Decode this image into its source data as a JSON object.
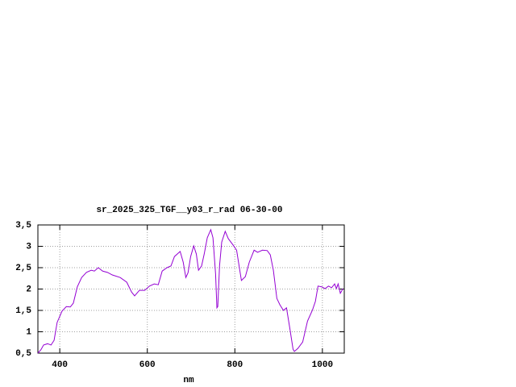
{
  "chart_data": {
    "type": "line",
    "title": "sr_2025_325_TGF__y03_r_rad 06-30-00",
    "x_label": "nm",
    "x": [
      350,
      357,
      363,
      372,
      380,
      387,
      394,
      405,
      415,
      424,
      431,
      440,
      450,
      461,
      472,
      479,
      488,
      498,
      509,
      520,
      538,
      553,
      564,
      571,
      582,
      594,
      605,
      616,
      625,
      634,
      645,
      654,
      662,
      675,
      682,
      688,
      693,
      699,
      706,
      712,
      717,
      724,
      730,
      737,
      745,
      750,
      756,
      759,
      761,
      765,
      770,
      778,
      785,
      796,
      804,
      815,
      824,
      833,
      844,
      852,
      863,
      874,
      881,
      888,
      896,
      903,
      911,
      918,
      925,
      933,
      936,
      944,
      955,
      966,
      977,
      984,
      990,
      999,
      1006,
      1014,
      1021,
      1028,
      1032,
      1036,
      1041,
      1047
    ],
    "series": [
      {
        "color": "#9400d3",
        "values": [
          0.5,
          0.58,
          0.69,
          0.72,
          0.69,
          0.8,
          1.22,
          1.48,
          1.59,
          1.58,
          1.67,
          2.05,
          2.27,
          2.39,
          2.44,
          2.42,
          2.5,
          2.42,
          2.39,
          2.33,
          2.27,
          2.16,
          1.93,
          1.84,
          1.97,
          1.97,
          2.07,
          2.12,
          2.1,
          2.42,
          2.5,
          2.54,
          2.76,
          2.88,
          2.63,
          2.27,
          2.38,
          2.76,
          3.01,
          2.82,
          2.44,
          2.54,
          2.82,
          3.2,
          3.39,
          3.2,
          2.35,
          1.56,
          1.59,
          2.54,
          3.1,
          3.35,
          3.18,
          3.03,
          2.91,
          2.2,
          2.29,
          2.63,
          2.91,
          2.86,
          2.91,
          2.9,
          2.8,
          2.44,
          1.78,
          1.63,
          1.5,
          1.56,
          1.12,
          0.59,
          0.54,
          0.61,
          0.76,
          1.25,
          1.5,
          1.71,
          2.07,
          2.05,
          2.01,
          2.07,
          2.03,
          2.12,
          2.01,
          2.12,
          1.9,
          2.01
        ]
      }
    ],
    "xlim": [
      350,
      1050
    ],
    "xticks": [
      400,
      600,
      800,
      1000
    ],
    "ylim": [
      0.5,
      3.5
    ],
    "yticks": [
      {
        "value": 0.5,
        "label": "0,5"
      },
      1,
      {
        "value": 1.5,
        "label": "1,5"
      },
      2,
      {
        "value": 2.5,
        "label": "2,5"
      },
      3,
      {
        "value": 3.5,
        "label": "3,5"
      }
    ],
    "grid": true
  }
}
